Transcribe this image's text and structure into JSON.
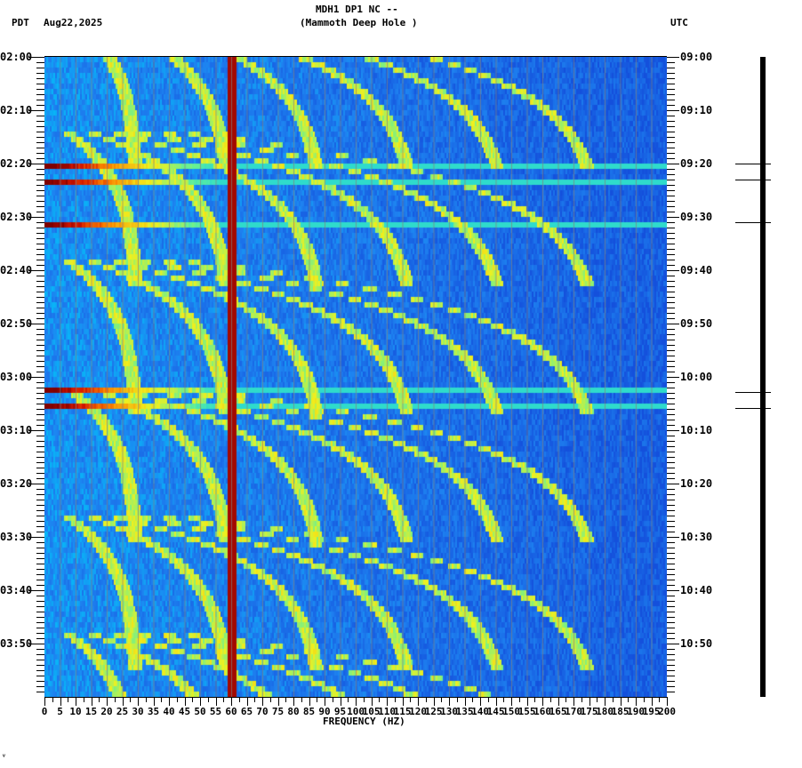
{
  "header": {
    "station_line": "MDH1 DP1 NC --",
    "station_name": "(Mammoth Deep Hole )",
    "left_tz": "PDT",
    "date": "Aug22,2025",
    "right_tz": "UTC"
  },
  "colors": {
    "background_low": "#1e6fe0",
    "mid": "#00c8ff",
    "high": "#f0f020",
    "peak": "#800000",
    "grid": "#808080"
  },
  "chart_data": {
    "type": "heatmap",
    "title": "MDH1 DP1 NC -- (Mammoth Deep Hole )",
    "xlabel": "FREQUENCY (HZ)",
    "ylabel_left": "PDT",
    "ylabel_right": "UTC",
    "xlim": [
      0,
      200
    ],
    "x_ticks": [
      "0",
      "5",
      "10",
      "15",
      "20",
      "25",
      "30",
      "35",
      "40",
      "45",
      "50",
      "55",
      "60",
      "65",
      "70",
      "75",
      "80",
      "85",
      "90",
      "95",
      "100",
      "105",
      "110",
      "115",
      "120",
      "125",
      "130",
      "135",
      "140",
      "145",
      "150",
      "155",
      "160",
      "165",
      "170",
      "175",
      "180",
      "185",
      "190",
      "195",
      "200"
    ],
    "y_ticks_left": [
      "02:00",
      "02:10",
      "02:20",
      "02:30",
      "02:40",
      "02:50",
      "03:00",
      "03:10",
      "03:20",
      "03:30",
      "03:40",
      "03:50"
    ],
    "y_ticks_right": [
      "09:00",
      "09:10",
      "09:20",
      "09:30",
      "09:40",
      "09:50",
      "10:00",
      "10:10",
      "10:20",
      "10:30",
      "10:40",
      "10:50"
    ],
    "persistent_line_hz": 60,
    "broadband_events_pdt": [
      "02:20",
      "02:23",
      "02:31",
      "03:02",
      "03:05"
    ],
    "annotations": [
      "curved harmonic gliding tones across 20-140 Hz, repeating roughly every 20-25 min"
    ]
  },
  "trace": {
    "event_marks_utc": [
      "09:20",
      "09:23",
      "09:31",
      "10:02",
      "10:05"
    ]
  },
  "footer": {
    "mark": "ⱽ"
  }
}
